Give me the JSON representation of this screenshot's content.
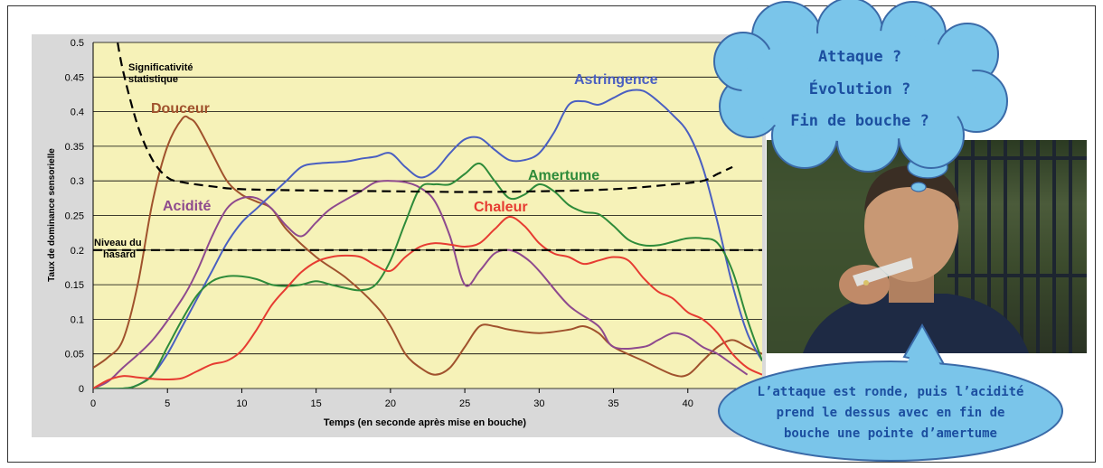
{
  "chart_data": {
    "type": "line",
    "xlabel": "Temps (en seconde après mise en bouche)",
    "ylabel": "Taux de dominance sensorielle",
    "xlim": [
      0,
      45
    ],
    "ylim": [
      0,
      0.5
    ],
    "x_ticks": [
      "0",
      "5",
      "10",
      "15",
      "20",
      "25",
      "30",
      "35",
      "40"
    ],
    "y_ticks": [
      "0",
      "0.05",
      "0.1",
      "0.15",
      "0.2",
      "0.25",
      "0.3",
      "0.35",
      "0.4",
      "0.45",
      "0.5"
    ],
    "grid": "horizontal",
    "background_color": "#f6f2b8",
    "annotations": {
      "significance": "Significativité statistique",
      "chance": "Niveau du hasard"
    },
    "series": [
      {
        "name": "Douceur",
        "color": "#a0522d",
        "points": [
          [
            0,
            0.03
          ],
          [
            1,
            0.045
          ],
          [
            2,
            0.07
          ],
          [
            3,
            0.15
          ],
          [
            4,
            0.27
          ],
          [
            5,
            0.35
          ],
          [
            6,
            0.39
          ],
          [
            6.5,
            0.39
          ],
          [
            7,
            0.38
          ],
          [
            8,
            0.34
          ],
          [
            9,
            0.3
          ],
          [
            10,
            0.28
          ],
          [
            11,
            0.27
          ],
          [
            12,
            0.26
          ],
          [
            13,
            0.23
          ],
          [
            15,
            0.19
          ],
          [
            17,
            0.16
          ],
          [
            19,
            0.12
          ],
          [
            20,
            0.09
          ],
          [
            21,
            0.05
          ],
          [
            22,
            0.03
          ],
          [
            23,
            0.02
          ],
          [
            24,
            0.03
          ],
          [
            25,
            0.06
          ],
          [
            26,
            0.09
          ],
          [
            27,
            0.09
          ],
          [
            28,
            0.085
          ],
          [
            30,
            0.08
          ],
          [
            32,
            0.085
          ],
          [
            33,
            0.09
          ],
          [
            34,
            0.08
          ],
          [
            35,
            0.06
          ],
          [
            37,
            0.04
          ],
          [
            39,
            0.02
          ],
          [
            40,
            0.02
          ],
          [
            41,
            0.04
          ],
          [
            42,
            0.06
          ],
          [
            43,
            0.07
          ],
          [
            44,
            0.06
          ],
          [
            45,
            0.05
          ]
        ]
      },
      {
        "name": "Acidité",
        "color": "#8e4a8e",
        "points": [
          [
            0,
            0
          ],
          [
            1,
            0.01
          ],
          [
            2,
            0.03
          ],
          [
            4,
            0.07
          ],
          [
            6,
            0.13
          ],
          [
            7,
            0.17
          ],
          [
            8,
            0.22
          ],
          [
            9,
            0.26
          ],
          [
            10,
            0.275
          ],
          [
            11,
            0.275
          ],
          [
            12,
            0.26
          ],
          [
            13,
            0.235
          ],
          [
            14,
            0.22
          ],
          [
            15,
            0.24
          ],
          [
            16,
            0.26
          ],
          [
            18,
            0.285
          ],
          [
            19,
            0.298
          ],
          [
            20,
            0.3
          ],
          [
            21,
            0.298
          ],
          [
            22,
            0.29
          ],
          [
            23,
            0.27
          ],
          [
            24,
            0.22
          ],
          [
            25,
            0.15
          ],
          [
            26,
            0.17
          ],
          [
            27,
            0.195
          ],
          [
            28,
            0.2
          ],
          [
            29,
            0.19
          ],
          [
            30,
            0.17
          ],
          [
            32,
            0.12
          ],
          [
            34,
            0.09
          ],
          [
            35,
            0.06
          ],
          [
            37,
            0.06
          ],
          [
            38,
            0.07
          ],
          [
            39,
            0.08
          ],
          [
            40,
            0.075
          ],
          [
            41,
            0.06
          ],
          [
            42,
            0.05
          ],
          [
            43,
            0.035
          ],
          [
            44,
            0.02
          ]
        ]
      },
      {
        "name": "Astringence",
        "color": "#4a5fc1",
        "points": [
          [
            0,
            0
          ],
          [
            2,
            0
          ],
          [
            3,
            0.005
          ],
          [
            4,
            0.02
          ],
          [
            5,
            0.05
          ],
          [
            6,
            0.09
          ],
          [
            7,
            0.13
          ],
          [
            8,
            0.17
          ],
          [
            9,
            0.21
          ],
          [
            10,
            0.24
          ],
          [
            11,
            0.26
          ],
          [
            12,
            0.28
          ],
          [
            13,
            0.3
          ],
          [
            14,
            0.32
          ],
          [
            15,
            0.325
          ],
          [
            17,
            0.328
          ],
          [
            18,
            0.332
          ],
          [
            19,
            0.335
          ],
          [
            20,
            0.34
          ],
          [
            21,
            0.32
          ],
          [
            22,
            0.305
          ],
          [
            23,
            0.315
          ],
          [
            24,
            0.34
          ],
          [
            25,
            0.36
          ],
          [
            26,
            0.362
          ],
          [
            27,
            0.345
          ],
          [
            28,
            0.33
          ],
          [
            29,
            0.33
          ],
          [
            30,
            0.34
          ],
          [
            31,
            0.37
          ],
          [
            32,
            0.41
          ],
          [
            33,
            0.415
          ],
          [
            34,
            0.41
          ],
          [
            35,
            0.42
          ],
          [
            36,
            0.43
          ],
          [
            37,
            0.43
          ],
          [
            38,
            0.415
          ],
          [
            39,
            0.395
          ],
          [
            40,
            0.37
          ],
          [
            41,
            0.32
          ],
          [
            42,
            0.24
          ],
          [
            43,
            0.15
          ],
          [
            44,
            0.08
          ],
          [
            45,
            0.04
          ]
        ]
      },
      {
        "name": "Amertume",
        "color": "#2e8b3a",
        "points": [
          [
            0,
            0
          ],
          [
            2,
            0
          ],
          [
            3,
            0.005
          ],
          [
            4,
            0.02
          ],
          [
            5,
            0.06
          ],
          [
            6,
            0.1
          ],
          [
            7,
            0.135
          ],
          [
            8,
            0.155
          ],
          [
            9,
            0.162
          ],
          [
            10,
            0.162
          ],
          [
            11,
            0.158
          ],
          [
            12,
            0.15
          ],
          [
            13,
            0.148
          ],
          [
            14,
            0.15
          ],
          [
            15,
            0.155
          ],
          [
            16,
            0.15
          ],
          [
            17,
            0.145
          ],
          [
            18,
            0.142
          ],
          [
            19,
            0.15
          ],
          [
            20,
            0.185
          ],
          [
            21,
            0.24
          ],
          [
            22,
            0.29
          ],
          [
            23,
            0.295
          ],
          [
            24,
            0.295
          ],
          [
            25,
            0.31
          ],
          [
            26,
            0.325
          ],
          [
            27,
            0.3
          ],
          [
            28,
            0.275
          ],
          [
            29,
            0.28
          ],
          [
            30,
            0.295
          ],
          [
            31,
            0.285
          ],
          [
            32,
            0.265
          ],
          [
            33,
            0.255
          ],
          [
            34,
            0.252
          ],
          [
            35,
            0.235
          ],
          [
            36,
            0.215
          ],
          [
            37,
            0.207
          ],
          [
            38,
            0.207
          ],
          [
            39,
            0.212
          ],
          [
            40,
            0.217
          ],
          [
            41,
            0.217
          ],
          [
            42,
            0.21
          ],
          [
            43,
            0.17
          ],
          [
            44,
            0.1
          ],
          [
            45,
            0.04
          ]
        ]
      },
      {
        "name": "Chaleur",
        "color": "#e63c32",
        "points": [
          [
            0,
            0
          ],
          [
            1,
            0.012
          ],
          [
            2,
            0.018
          ],
          [
            3,
            0.016
          ],
          [
            4,
            0.014
          ],
          [
            5,
            0.013
          ],
          [
            6,
            0.015
          ],
          [
            7,
            0.025
          ],
          [
            8,
            0.035
          ],
          [
            9,
            0.04
          ],
          [
            10,
            0.055
          ],
          [
            11,
            0.085
          ],
          [
            12,
            0.12
          ],
          [
            13,
            0.145
          ],
          [
            14,
            0.168
          ],
          [
            15,
            0.183
          ],
          [
            16,
            0.19
          ],
          [
            17,
            0.192
          ],
          [
            18,
            0.19
          ],
          [
            19,
            0.178
          ],
          [
            20,
            0.17
          ],
          [
            21,
            0.19
          ],
          [
            22,
            0.205
          ],
          [
            23,
            0.21
          ],
          [
            24,
            0.208
          ],
          [
            25,
            0.205
          ],
          [
            26,
            0.21
          ],
          [
            27,
            0.23
          ],
          [
            28,
            0.248
          ],
          [
            29,
            0.235
          ],
          [
            30,
            0.21
          ],
          [
            31,
            0.195
          ],
          [
            32,
            0.19
          ],
          [
            33,
            0.18
          ],
          [
            34,
            0.185
          ],
          [
            35,
            0.19
          ],
          [
            36,
            0.185
          ],
          [
            37,
            0.16
          ],
          [
            38,
            0.14
          ],
          [
            39,
            0.13
          ],
          [
            40,
            0.11
          ],
          [
            41,
            0.1
          ],
          [
            42,
            0.08
          ],
          [
            43,
            0.05
          ],
          [
            44,
            0.03
          ],
          [
            45,
            0.02
          ]
        ]
      }
    ],
    "reference_lines": [
      {
        "name": "Significativité statistique",
        "style": "dashed",
        "points": [
          [
            1.5,
            0.52
          ],
          [
            2,
            0.46
          ],
          [
            3,
            0.38
          ],
          [
            4,
            0.33
          ],
          [
            5,
            0.305
          ],
          [
            6,
            0.298
          ],
          [
            8,
            0.292
          ],
          [
            10,
            0.288
          ],
          [
            15,
            0.286
          ],
          [
            20,
            0.285
          ],
          [
            25,
            0.284
          ],
          [
            30,
            0.285
          ],
          [
            35,
            0.288
          ],
          [
            39,
            0.295
          ],
          [
            41,
            0.3
          ],
          [
            42,
            0.31
          ],
          [
            43,
            0.32
          ]
        ]
      },
      {
        "name": "Niveau du hasard",
        "style": "dashed",
        "points": [
          [
            0,
            0.2
          ],
          [
            45,
            0.2
          ]
        ]
      }
    ]
  },
  "bubbles": {
    "thought": [
      "Attaque ?",
      "Évolution ?",
      "Fin de bouche ?"
    ],
    "speech": [
      "L’attaque est ronde, puis l’acidité",
      "prend le dessus avec en fin de",
      "bouche une pointe d’amertume"
    ]
  },
  "photo": {
    "subject": "man-smelling-wine-glass"
  }
}
